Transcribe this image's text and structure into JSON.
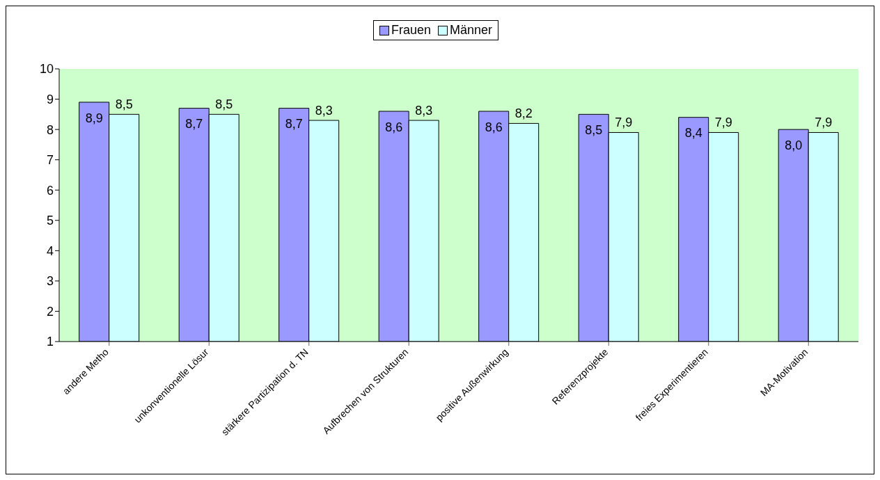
{
  "chart_data": {
    "type": "bar",
    "categories": [
      "andere Metho",
      "unkonventionelle Lösur",
      "stärkere Partizipation d. TN",
      "Aufbrechen von Strukturen",
      "positive Außenwirkung",
      "Referenzprojekte",
      "freies Experimentieren",
      "MA-Motivation"
    ],
    "series": [
      {
        "name": "Frauen",
        "color": "#9999ff",
        "values": [
          8.9,
          8.7,
          8.7,
          8.6,
          8.6,
          8.5,
          8.4,
          8.0
        ],
        "value_labels": [
          "8,9",
          "8,7",
          "8,7",
          "8,6",
          "8,6",
          "8,5",
          "8,4",
          "8,0"
        ]
      },
      {
        "name": "Männer",
        "color": "#ccffff",
        "values": [
          8.5,
          8.5,
          8.3,
          8.3,
          8.2,
          7.9,
          7.9,
          7.9
        ],
        "value_labels": [
          "8,5",
          "8,5",
          "8,3",
          "8,3",
          "8,2",
          "7,9",
          "7,9",
          "7,9"
        ]
      }
    ],
    "ylim": [
      1,
      10
    ],
    "yticks": [
      1,
      2,
      3,
      4,
      5,
      6,
      7,
      8,
      9,
      10
    ],
    "grid": false,
    "legend": "top"
  }
}
